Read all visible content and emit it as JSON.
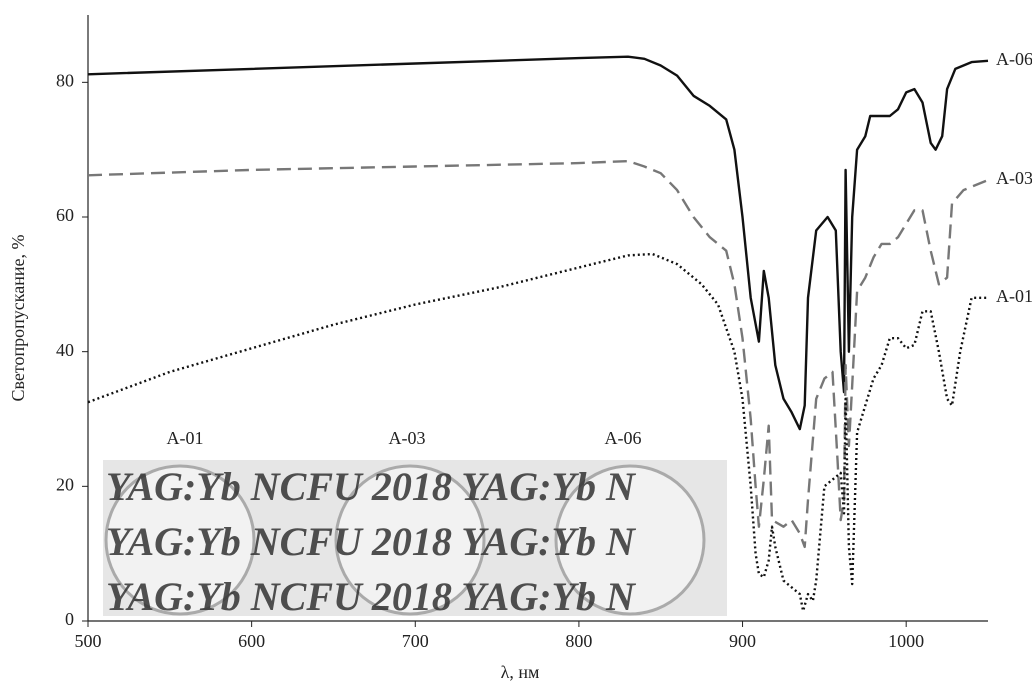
{
  "chart_data": {
    "type": "line",
    "x_label": "λ, нм",
    "y_label": "Светопропускание, %",
    "xlim": [
      500,
      1050
    ],
    "xticks": [
      500,
      600,
      700,
      800,
      900,
      1000
    ],
    "ylim": [
      0,
      90
    ],
    "yticks": [
      0,
      20,
      40,
      60,
      80
    ],
    "series": [
      {
        "name": "A-06",
        "color": "#111111",
        "dash": "solid",
        "x": [
          500,
          600,
          700,
          800,
          830,
          840,
          850,
          860,
          870,
          880,
          890,
          895,
          900,
          905,
          910,
          913,
          916,
          920,
          925,
          930,
          935,
          938,
          940,
          945,
          952,
          957,
          960,
          962,
          963,
          965,
          967,
          970,
          975,
          978,
          985,
          990,
          995,
          1000,
          1005,
          1010,
          1015,
          1018,
          1022,
          1025,
          1030,
          1040,
          1050
        ],
        "values": [
          81.2,
          82,
          82.8,
          83.6,
          83.8,
          83.5,
          82.5,
          81,
          78,
          76.5,
          74.5,
          70,
          60,
          48,
          41.5,
          52,
          48,
          38,
          33,
          31,
          28.5,
          32,
          48,
          58,
          60,
          58,
          40,
          34,
          67,
          40,
          60,
          70,
          72,
          75,
          75,
          75,
          76,
          78.5,
          79,
          77,
          71,
          70,
          72,
          79,
          82,
          83,
          83.2
        ]
      },
      {
        "name": "A-03",
        "color": "#777777",
        "dash": "dashed",
        "x": [
          500,
          600,
          700,
          800,
          830,
          840,
          850,
          860,
          870,
          880,
          890,
          895,
          900,
          905,
          908,
          910,
          913,
          916,
          918,
          925,
          930,
          935,
          938,
          940,
          945,
          950,
          955,
          958,
          960,
          962,
          963,
          965,
          967,
          970,
          975,
          980,
          985,
          990,
          995,
          1000,
          1005,
          1010,
          1015,
          1020,
          1025,
          1028,
          1035,
          1050
        ],
        "values": [
          66.2,
          67,
          67.5,
          68,
          68.3,
          67.5,
          66.5,
          64,
          60,
          57,
          55,
          50,
          42,
          30,
          20,
          14,
          21,
          29,
          15,
          14,
          15,
          13,
          11,
          18,
          33,
          36,
          37,
          24,
          15,
          18,
          38,
          26,
          35,
          49,
          51,
          54,
          56,
          56,
          57,
          59,
          61,
          61,
          55,
          50,
          51,
          62,
          64,
          65.5
        ]
      },
      {
        "name": "A-01",
        "color": "#111111",
        "dash": "dotted",
        "x": [
          500,
          550,
          600,
          650,
          700,
          750,
          800,
          830,
          845,
          860,
          875,
          885,
          895,
          900,
          905,
          908,
          910,
          913,
          916,
          918,
          920,
          925,
          930,
          935,
          937,
          940,
          943,
          945,
          950,
          955,
          960,
          962,
          963,
          965,
          967,
          970,
          975,
          980,
          985,
          990,
          995,
          1000,
          1005,
          1010,
          1015,
          1020,
          1025,
          1028,
          1033,
          1040,
          1050
        ],
        "values": [
          32.5,
          37,
          40.5,
          44,
          47,
          49.5,
          52.5,
          54.3,
          54.5,
          53,
          50,
          47,
          40,
          33,
          20,
          10,
          7,
          6.5,
          9,
          14,
          11,
          6,
          5,
          4,
          1.5,
          4,
          3,
          6,
          20,
          21,
          22,
          16,
          33,
          11,
          5.5,
          28,
          32,
          36,
          38,
          42,
          42,
          40.5,
          41,
          46,
          46,
          40,
          33,
          32,
          40,
          48,
          48
        ]
      }
    ],
    "inset": {
      "labels": [
        "A-01",
        "A-03",
        "A-06"
      ],
      "rows": [
        "YAG:Yb NCFU 2018 YAG:Yb N",
        "YAG:Yb NCFU 2018 YAG:Yb N",
        "YAG:Yb NCFU 2018 YAG:Yb N"
      ]
    }
  }
}
